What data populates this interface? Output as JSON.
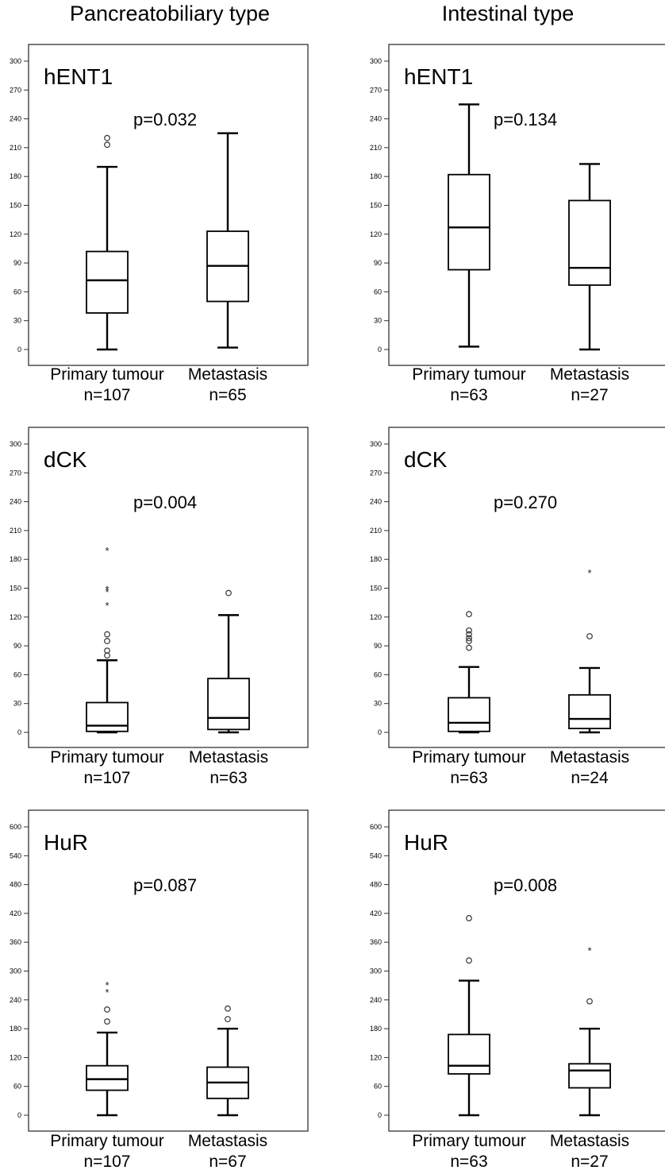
{
  "columns": [
    {
      "title": "Pancreatobiliary type"
    },
    {
      "title": "Intestinal type"
    }
  ],
  "chart_data": [
    {
      "type": "box",
      "column": "Pancreatobiliary type",
      "marker": "hENT1",
      "p_value": "p=0.032",
      "ylim": [
        0,
        300
      ],
      "yticks": [
        "0",
        "30",
        "60",
        "90",
        "120",
        "150",
        "180",
        "210",
        "240",
        "270",
        "300"
      ],
      "groups": [
        {
          "label": "Primary tumour",
          "n": "n=107",
          "min": 0,
          "q1": 38,
          "median": 72,
          "q3": 102,
          "max": 190,
          "outliers": [
            {
              "v": 213,
              "m": "o"
            },
            {
              "v": 220,
              "m": "o"
            }
          ]
        },
        {
          "label": "Metastasis",
          "n": "n=65",
          "min": 2,
          "q1": 50,
          "median": 87,
          "q3": 123,
          "max": 225,
          "outliers": []
        }
      ]
    },
    {
      "type": "box",
      "column": "Intestinal type",
      "marker": "hENT1",
      "p_value": "p=0.134",
      "ylim": [
        0,
        300
      ],
      "yticks": [
        "0",
        "30",
        "60",
        "90",
        "120",
        "150",
        "180",
        "210",
        "240",
        "270",
        "300"
      ],
      "groups": [
        {
          "label": "Primary tumour",
          "n": "n=63",
          "min": 3,
          "q1": 83,
          "median": 127,
          "q3": 182,
          "max": 255,
          "outliers": []
        },
        {
          "label": "Metastasis",
          "n": "n=27",
          "min": 0,
          "q1": 67,
          "median": 85,
          "q3": 155,
          "max": 193,
          "outliers": []
        }
      ]
    },
    {
      "type": "box",
      "column": "Pancreatobiliary type",
      "marker": "dCK",
      "p_value": "p=0.004",
      "ylim": [
        0,
        300
      ],
      "yticks": [
        "0",
        "30",
        "60",
        "90",
        "120",
        "150",
        "180",
        "210",
        "240",
        "270",
        "300"
      ],
      "groups": [
        {
          "label": "Primary tumour",
          "n": "n=107",
          "min": 0,
          "q1": 1,
          "median": 7,
          "q3": 31,
          "max": 75,
          "outliers": [
            {
              "v": 80,
              "m": "o"
            },
            {
              "v": 85,
              "m": "o"
            },
            {
              "v": 95,
              "m": "o"
            },
            {
              "v": 102,
              "m": "o"
            },
            {
              "v": 133,
              "m": "*"
            },
            {
              "v": 147,
              "m": "*"
            },
            {
              "v": 150,
              "m": "*"
            },
            {
              "v": 190,
              "m": "*"
            }
          ]
        },
        {
          "label": "Metastasis",
          "n": "n=63",
          "min": 0,
          "q1": 3,
          "median": 15,
          "q3": 56,
          "max": 122,
          "outliers": [
            {
              "v": 145,
              "m": "o"
            }
          ]
        }
      ]
    },
    {
      "type": "box",
      "column": "Intestinal type",
      "marker": "dCK",
      "p_value": "p=0.270",
      "ylim": [
        0,
        300
      ],
      "yticks": [
        "0",
        "30",
        "60",
        "90",
        "120",
        "150",
        "180",
        "210",
        "240",
        "270",
        "300"
      ],
      "groups": [
        {
          "label": "Primary tumour",
          "n": "n=63",
          "min": 0,
          "q1": 1,
          "median": 10,
          "q3": 36,
          "max": 68,
          "outliers": [
            {
              "v": 88,
              "m": "o"
            },
            {
              "v": 95,
              "m": "o"
            },
            {
              "v": 98,
              "m": "o"
            },
            {
              "v": 102,
              "m": "o"
            },
            {
              "v": 106,
              "m": "o"
            },
            {
              "v": 123,
              "m": "o"
            }
          ]
        },
        {
          "label": "Metastasis",
          "n": "n=24",
          "min": 0,
          "q1": 4,
          "median": 14,
          "q3": 39,
          "max": 67,
          "outliers": [
            {
              "v": 100,
              "m": "o"
            },
            {
              "v": 167,
              "m": "*"
            }
          ]
        }
      ]
    },
    {
      "type": "box",
      "column": "Pancreatobiliary type",
      "marker": "HuR",
      "p_value": "p=0.087",
      "ylim": [
        0,
        600
      ],
      "yticks": [
        "0",
        "60",
        "120",
        "180",
        "240",
        "300",
        "360",
        "420",
        "480",
        "540",
        "600"
      ],
      "groups": [
        {
          "label": "Primary tumour",
          "n": "n=107",
          "min": 0,
          "q1": 52,
          "median": 75,
          "q3": 103,
          "max": 172,
          "outliers": [
            {
              "v": 195,
              "m": "o"
            },
            {
              "v": 220,
              "m": "o"
            },
            {
              "v": 258,
              "m": "*"
            },
            {
              "v": 273,
              "m": "*"
            }
          ]
        },
        {
          "label": "Metastasis",
          "n": "n=67",
          "min": 0,
          "q1": 35,
          "median": 68,
          "q3": 100,
          "max": 180,
          "outliers": [
            {
              "v": 200,
              "m": "o"
            },
            {
              "v": 222,
              "m": "o"
            }
          ]
        }
      ]
    },
    {
      "type": "box",
      "column": "Intestinal type",
      "marker": "HuR",
      "p_value": "p=0.008",
      "ylim": [
        0,
        600
      ],
      "yticks": [
        "0",
        "60",
        "120",
        "180",
        "240",
        "300",
        "360",
        "420",
        "480",
        "540",
        "600"
      ],
      "groups": [
        {
          "label": "Primary tumour",
          "n": "n=63",
          "min": 0,
          "q1": 86,
          "median": 103,
          "q3": 168,
          "max": 280,
          "outliers": [
            {
              "v": 322,
              "m": "o"
            },
            {
              "v": 410,
              "m": "o"
            }
          ]
        },
        {
          "label": "Metastasis",
          "n": "n=27",
          "min": 0,
          "q1": 57,
          "median": 93,
          "q3": 107,
          "max": 180,
          "outliers": [
            {
              "v": 237,
              "m": "o"
            },
            {
              "v": 345,
              "m": "*"
            }
          ]
        }
      ]
    }
  ]
}
